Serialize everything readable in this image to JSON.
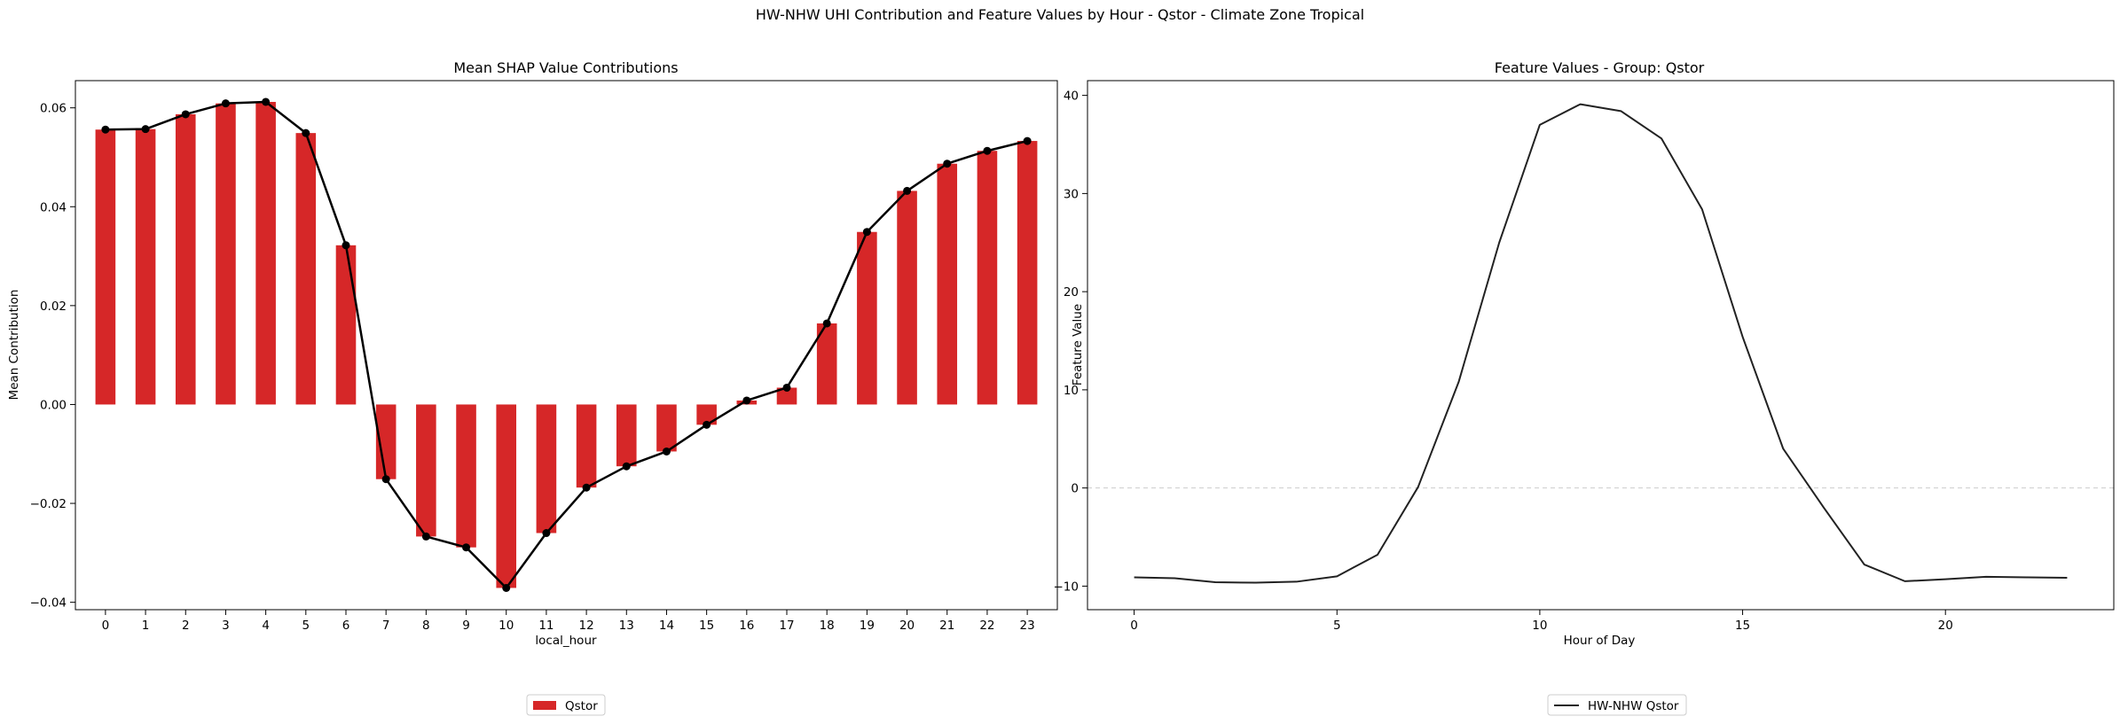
{
  "figure": {
    "suptitle": "HW-NHW UHI Contribution and Feature Values by Hour - Qstor - Climate Zone Tropical"
  },
  "chart_data": [
    {
      "type": "bar",
      "title": "Mean SHAP Value Contributions",
      "xlabel": "local_hour",
      "ylabel": "Mean Contribution",
      "categories": [
        "0",
        "1",
        "2",
        "3",
        "4",
        "5",
        "6",
        "7",
        "8",
        "9",
        "10",
        "11",
        "12",
        "13",
        "14",
        "15",
        "16",
        "17",
        "18",
        "19",
        "20",
        "21",
        "22",
        "23"
      ],
      "series": [
        {
          "name": "Qstor",
          "color": "#d62728",
          "values": [
            0.0556,
            0.0557,
            0.0587,
            0.0609,
            0.0612,
            0.0549,
            0.0322,
            -0.0151,
            -0.0267,
            -0.0289,
            -0.0371,
            -0.026,
            -0.0168,
            -0.0125,
            -0.0095,
            -0.0041,
            0.0008,
            0.0034,
            0.0164,
            0.0349,
            0.0432,
            0.0487,
            0.0513,
            0.0533
          ]
        }
      ],
      "overlay_line": {
        "color": "#000000",
        "marker": "circle"
      },
      "ylim": [
        -0.0415,
        0.0655
      ],
      "yticks": [
        -0.04,
        -0.02,
        0.0,
        0.02,
        0.04,
        0.06
      ],
      "ytick_labels": [
        "−0.04",
        "−0.02",
        "0.00",
        "0.02",
        "0.04",
        "0.06"
      ],
      "grid": false,
      "legend": {
        "placement": "bottom-center",
        "entries": [
          "Qstor"
        ]
      }
    },
    {
      "type": "line",
      "title": "Feature Values - Group: Qstor",
      "xlabel": "Hour of Day",
      "ylabel": "Feature Value",
      "x": [
        0,
        1,
        2,
        3,
        4,
        5,
        6,
        7,
        8,
        9,
        10,
        11,
        12,
        13,
        14,
        15,
        16,
        17,
        18,
        19,
        20,
        21,
        22,
        23
      ],
      "series": [
        {
          "name": "HW-NHW Qstor",
          "color": "#222222",
          "values": [
            -9.1,
            -9.2,
            -9.6,
            -9.65,
            -9.55,
            -9.0,
            -6.8,
            0.1,
            10.8,
            25.0,
            37.0,
            39.1,
            38.4,
            35.6,
            28.4,
            15.4,
            4.0,
            -2.0,
            -7.8,
            -9.5,
            -9.3,
            -9.05,
            -9.1,
            -9.15
          ]
        }
      ],
      "xlim": [
        -1.15,
        24.15
      ],
      "ylim": [
        -12.4,
        41.5
      ],
      "xticks": [
        0,
        5,
        10,
        15,
        20
      ],
      "yticks": [
        -10,
        0,
        10,
        20,
        30,
        40
      ],
      "ytick_labels": [
        "−10",
        "0",
        "10",
        "20",
        "30",
        "40"
      ],
      "reference_line": {
        "y": 0,
        "color": "#cccccc",
        "style": "dashed"
      },
      "grid": false,
      "legend": {
        "placement": "bottom-center",
        "entries": [
          "HW-NHW Qstor"
        ]
      }
    }
  ]
}
